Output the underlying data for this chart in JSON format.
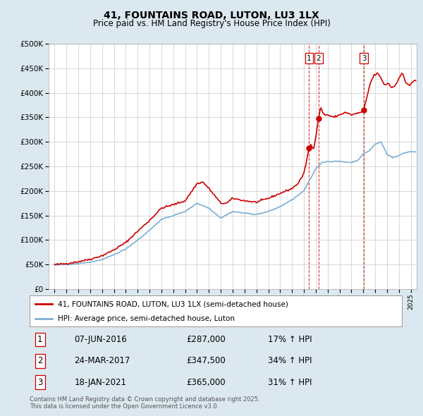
{
  "title": "41, FOUNTAINS ROAD, LUTON, LU3 1LX",
  "subtitle": "Price paid vs. HM Land Registry's House Price Index (HPI)",
  "legend_line1": "41, FOUNTAINS ROAD, LUTON, LU3 1LX (semi-detached house)",
  "legend_line2": "HPI: Average price, semi-detached house, Luton",
  "sales": [
    {
      "num": 1,
      "date": "07-JUN-2016",
      "price": 287000,
      "year": 2016.44,
      "pct": "17% ↑ HPI"
    },
    {
      "num": 2,
      "date": "24-MAR-2017",
      "price": 347500,
      "year": 2017.23,
      "pct": "34% ↑ HPI"
    },
    {
      "num": 3,
      "date": "18-JAN-2021",
      "price": 365000,
      "year": 2021.05,
      "pct": "31% ↑ HPI"
    }
  ],
  "footnote1": "Contains HM Land Registry data © Crown copyright and database right 2025.",
  "footnote2": "This data is licensed under the Open Government Licence v3.0.",
  "red_color": "#cc0000",
  "blue_color": "#7bafd4",
  "background_color": "#dce8f0",
  "plot_bg": "#ffffff",
  "ylim": [
    0,
    500000
  ],
  "yticks": [
    0,
    50000,
    100000,
    150000,
    200000,
    250000,
    300000,
    350000,
    400000,
    450000,
    500000
  ],
  "xlim_start": 1994.5,
  "xlim_end": 2025.5
}
